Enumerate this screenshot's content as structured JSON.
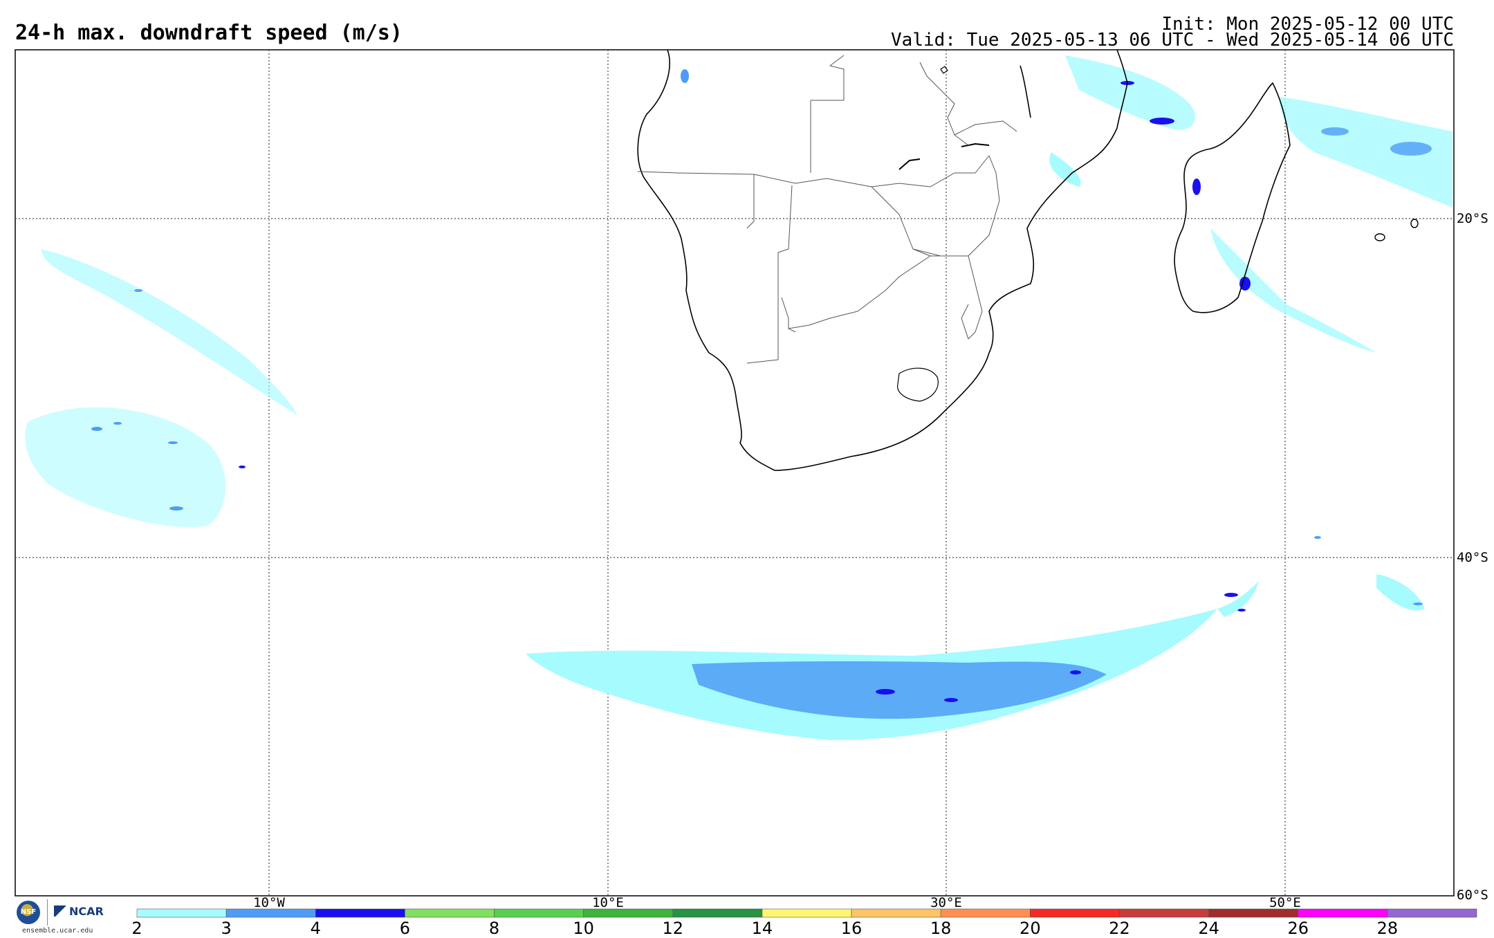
{
  "header": {
    "title": "24-h max. downdraft speed (m/s)",
    "init": "Init: Mon 2025-05-12 00 UTC",
    "valid": "Valid: Tue 2025-05-13 06 UTC - Wed 2025-05-14 06 UTC"
  },
  "map": {
    "variable": "24-h max. downdraft speed",
    "units": "m/s",
    "longitude_labels": [
      "10°W",
      "10°E",
      "30°E",
      "50°E"
    ],
    "latitude_labels": [
      "20°S",
      "40°S",
      "60°S"
    ],
    "region": "Southern Africa and surrounding oceans",
    "gridlines": "dotted"
  },
  "colorbar": {
    "ticks": [
      "2",
      "3",
      "4",
      "6",
      "8",
      "10",
      "12",
      "14",
      "16",
      "18",
      "20",
      "22",
      "24",
      "26",
      "28"
    ],
    "colors": [
      "#a6fbff",
      "#4f9cf6",
      "#1a0ff0",
      "#80e060",
      "#57cf4f",
      "#3db33e",
      "#259343",
      "#fff770",
      "#ffc466",
      "#ff8f50",
      "#f52a25",
      "#c83c3a",
      "#a12c2c",
      "#ff00ff",
      "#9467d0"
    ]
  },
  "logo": {
    "nsf_label": "NSF",
    "ncar_label": "NCAR",
    "site": "ensemble.ucar.edu"
  }
}
